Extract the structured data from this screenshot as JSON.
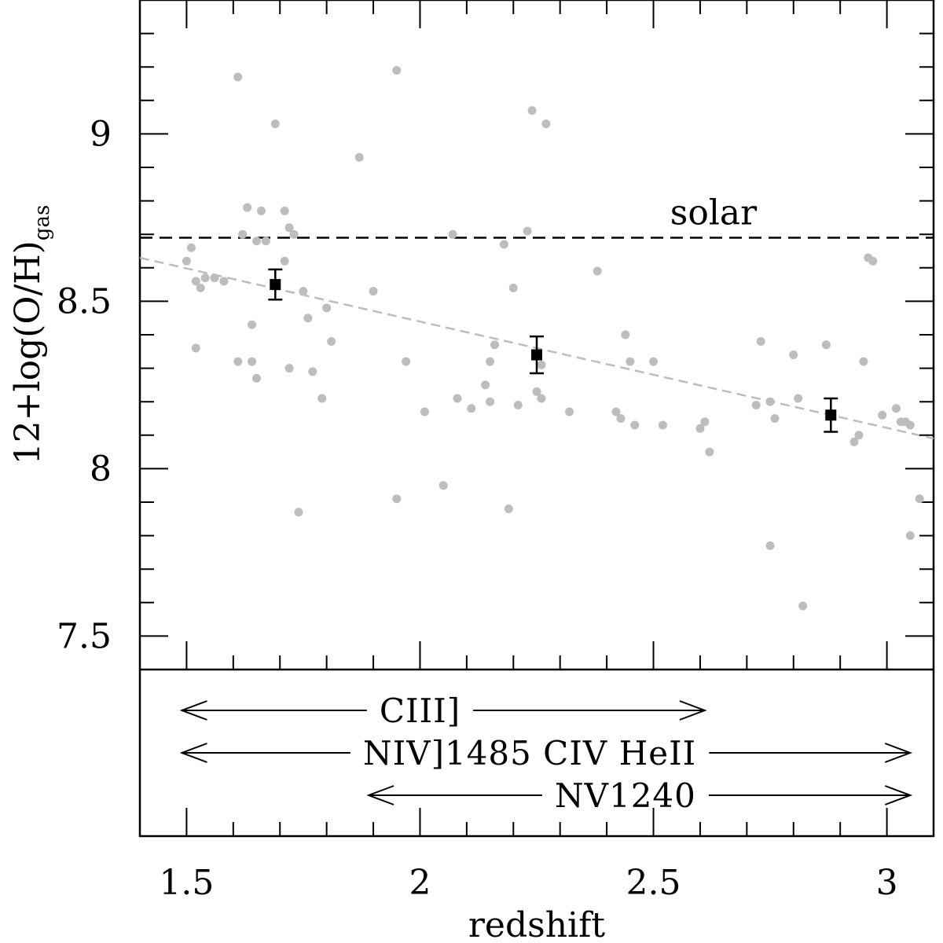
{
  "chart_data": {
    "type": "scatter",
    "xlabel": "redshift",
    "ylabel": {
      "main": "12+log(O/H)",
      "subscript": "gas"
    },
    "xlim": [
      1.4,
      3.1
    ],
    "ylim": [
      7.4,
      9.4
    ],
    "x_ticks": [
      1.5,
      2,
      2.5,
      3
    ],
    "x_tick_labels": [
      "1.5",
      "2",
      "2.5",
      "3"
    ],
    "y_ticks": [
      7.5,
      8,
      8.5,
      9
    ],
    "y_tick_labels": [
      "7.5",
      "8",
      "8.5",
      "9"
    ],
    "solar": {
      "label": "solar",
      "y": 8.69
    },
    "trend_line": {
      "x": [
        1.4,
        3.1
      ],
      "y": [
        8.63,
        8.09
      ]
    },
    "colors": {
      "scatter": "#bdbdbd",
      "binned": "#000000",
      "trend": "#bdbdbd",
      "solar": "#000000"
    },
    "scatter_points": [
      {
        "x": 1.61,
        "y": 9.17
      },
      {
        "x": 1.54,
        "y": 8.57
      },
      {
        "x": 1.52,
        "y": 8.56
      },
      {
        "x": 1.53,
        "y": 8.54
      },
      {
        "x": 1.56,
        "y": 8.57
      },
      {
        "x": 1.58,
        "y": 8.56
      },
      {
        "x": 1.5,
        "y": 8.62
      },
      {
        "x": 1.51,
        "y": 8.66
      },
      {
        "x": 1.62,
        "y": 8.7
      },
      {
        "x": 1.63,
        "y": 8.78
      },
      {
        "x": 1.66,
        "y": 8.77
      },
      {
        "x": 1.65,
        "y": 8.68
      },
      {
        "x": 1.67,
        "y": 8.68
      },
      {
        "x": 1.71,
        "y": 8.62
      },
      {
        "x": 1.72,
        "y": 8.3
      },
      {
        "x": 1.61,
        "y": 8.32
      },
      {
        "x": 1.64,
        "y": 8.32
      },
      {
        "x": 1.65,
        "y": 8.27
      },
      {
        "x": 1.64,
        "y": 8.43
      },
      {
        "x": 1.52,
        "y": 8.36
      },
      {
        "x": 1.69,
        "y": 9.03
      },
      {
        "x": 1.71,
        "y": 8.77
      },
      {
        "x": 1.72,
        "y": 8.72
      },
      {
        "x": 1.73,
        "y": 8.7
      },
      {
        "x": 1.75,
        "y": 8.53
      },
      {
        "x": 1.76,
        "y": 8.45
      },
      {
        "x": 1.8,
        "y": 8.48
      },
      {
        "x": 1.81,
        "y": 8.38
      },
      {
        "x": 1.77,
        "y": 8.29
      },
      {
        "x": 1.79,
        "y": 8.21
      },
      {
        "x": 1.74,
        "y": 7.87
      },
      {
        "x": 1.87,
        "y": 8.93
      },
      {
        "x": 1.9,
        "y": 8.53
      },
      {
        "x": 1.97,
        "y": 8.32
      },
      {
        "x": 1.95,
        "y": 9.19
      },
      {
        "x": 1.95,
        "y": 7.91
      },
      {
        "x": 2.01,
        "y": 8.17
      },
      {
        "x": 2.05,
        "y": 7.95
      },
      {
        "x": 2.07,
        "y": 8.7
      },
      {
        "x": 2.08,
        "y": 8.21
      },
      {
        "x": 2.11,
        "y": 8.18
      },
      {
        "x": 2.14,
        "y": 8.25
      },
      {
        "x": 2.15,
        "y": 8.32
      },
      {
        "x": 2.16,
        "y": 8.37
      },
      {
        "x": 2.15,
        "y": 8.2
      },
      {
        "x": 2.18,
        "y": 8.67
      },
      {
        "x": 2.2,
        "y": 8.54
      },
      {
        "x": 2.21,
        "y": 8.19
      },
      {
        "x": 2.19,
        "y": 7.88
      },
      {
        "x": 2.23,
        "y": 8.71
      },
      {
        "x": 2.24,
        "y": 9.07
      },
      {
        "x": 2.25,
        "y": 8.23
      },
      {
        "x": 2.26,
        "y": 8.31
      },
      {
        "x": 2.27,
        "y": 9.03
      },
      {
        "x": 2.26,
        "y": 8.21
      },
      {
        "x": 2.32,
        "y": 8.17
      },
      {
        "x": 2.38,
        "y": 8.59
      },
      {
        "x": 2.42,
        "y": 8.17
      },
      {
        "x": 2.43,
        "y": 8.15
      },
      {
        "x": 2.44,
        "y": 8.4
      },
      {
        "x": 2.45,
        "y": 8.32
      },
      {
        "x": 2.46,
        "y": 8.13
      },
      {
        "x": 2.5,
        "y": 8.32
      },
      {
        "x": 2.52,
        "y": 8.13
      },
      {
        "x": 2.6,
        "y": 8.12
      },
      {
        "x": 2.61,
        "y": 8.14
      },
      {
        "x": 2.62,
        "y": 8.05
      },
      {
        "x": 2.72,
        "y": 8.19
      },
      {
        "x": 2.73,
        "y": 8.38
      },
      {
        "x": 2.75,
        "y": 8.2
      },
      {
        "x": 2.76,
        "y": 8.15
      },
      {
        "x": 2.75,
        "y": 7.77
      },
      {
        "x": 2.8,
        "y": 8.34
      },
      {
        "x": 2.81,
        "y": 8.21
      },
      {
        "x": 2.82,
        "y": 7.59
      },
      {
        "x": 2.87,
        "y": 8.37
      },
      {
        "x": 2.93,
        "y": 8.08
      },
      {
        "x": 2.94,
        "y": 8.1
      },
      {
        "x": 2.95,
        "y": 8.32
      },
      {
        "x": 2.96,
        "y": 8.63
      },
      {
        "x": 2.97,
        "y": 8.62
      },
      {
        "x": 2.99,
        "y": 8.16
      },
      {
        "x": 3.02,
        "y": 8.18
      },
      {
        "x": 3.03,
        "y": 8.14
      },
      {
        "x": 3.04,
        "y": 8.14
      },
      {
        "x": 3.05,
        "y": 8.13
      },
      {
        "x": 3.05,
        "y": 7.8
      },
      {
        "x": 3.07,
        "y": 7.91
      }
    ],
    "binned_points": [
      {
        "x": 1.69,
        "y": 8.55,
        "yerr": 0.045
      },
      {
        "x": 2.25,
        "y": 8.34,
        "yerr": 0.055
      },
      {
        "x": 2.88,
        "y": 8.16,
        "yerr": 0.05
      }
    ],
    "line_ranges": [
      {
        "label": "CIII]",
        "x_start": 1.49,
        "x_end": 2.61,
        "label_x": 2.0
      },
      {
        "label": "NIV]1485 CIV HeII",
        "x_start": 1.49,
        "x_end": 3.05,
        "label_x": 2.235
      },
      {
        "label": "NV1240",
        "x_start": 1.89,
        "x_end": 3.05,
        "label_x": 2.44
      }
    ]
  }
}
